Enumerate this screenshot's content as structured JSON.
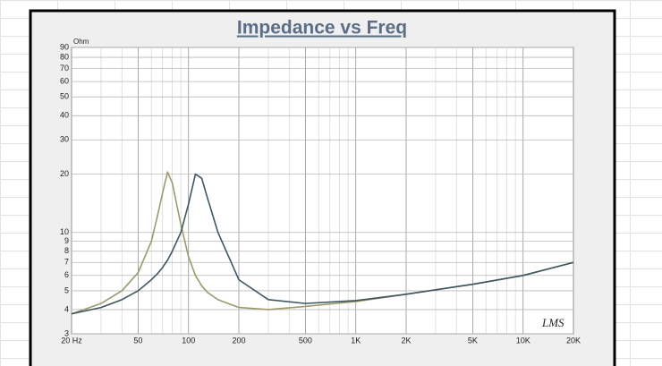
{
  "chart_data": {
    "type": "line",
    "title": "Impedance vs Freq",
    "y_label": "Ohm",
    "annotation": "LMS",
    "log_x": true,
    "log_y": true,
    "grid": true,
    "x": [
      20,
      30,
      40,
      50,
      60,
      65,
      70,
      75,
      80,
      90,
      100,
      110,
      120,
      130,
      150,
      200,
      300,
      500,
      1000,
      2000,
      5000,
      10000,
      20000
    ],
    "series": [
      {
        "color": "#9c9a6c",
        "values": [
          3.8,
          4.3,
          5.0,
          6.2,
          9,
          12,
          16,
          20.5,
          18,
          11,
          7.5,
          6,
          5.3,
          4.9,
          4.5,
          4.1,
          4.0,
          4.15,
          4.4,
          4.8,
          5.4,
          6.0,
          7.0
        ]
      },
      {
        "color": "#3f5660",
        "values": [
          3.8,
          4.1,
          4.5,
          5.0,
          5.7,
          6.1,
          6.6,
          7.2,
          8,
          10,
          14,
          20,
          19,
          15,
          10,
          5.7,
          4.5,
          4.3,
          4.45,
          4.8,
          5.4,
          6.0,
          7.0
        ]
      }
    ],
    "xlim": [
      20,
      20000
    ],
    "ylim": [
      3,
      90
    ],
    "xticks": [
      {
        "value": 20,
        "label": "20 Hz"
      },
      50,
      100,
      200,
      500,
      {
        "value": 1000,
        "label": "1K"
      },
      {
        "value": 2000,
        "label": "2K"
      },
      {
        "value": 5000,
        "label": "5K"
      },
      {
        "value": 10000,
        "label": "10K"
      },
      {
        "value": 20000,
        "label": "20K"
      }
    ],
    "yticks": [
      3,
      4,
      5,
      6,
      7,
      8,
      9,
      10,
      20,
      30,
      40,
      50,
      60,
      70,
      80,
      90
    ]
  }
}
